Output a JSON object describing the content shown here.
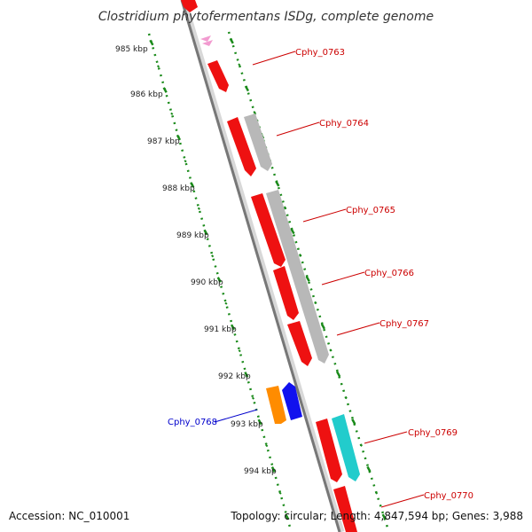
{
  "title": "Clostridium phytofermentans ISDg, complete genome",
  "footer": {
    "accession": "Accession: NC_010001",
    "topology": "Topology: circular; Length: 4,847,594 bp; Genes: 3,988"
  },
  "scale": {
    "unit": "kbp",
    "labels": [
      "985 kbp",
      "986 kbp",
      "987 kbp",
      "988 kbp",
      "989 kbp",
      "990 kbp",
      "991 kbp",
      "992 kbp",
      "993 kbp",
      "994 kbp"
    ]
  },
  "colors": {
    "backbone": "#808080",
    "tick": "#1a8a1a",
    "label_red": "#cc0000",
    "label_blue": "#0000cc"
  },
  "genes": [
    {
      "name": "Cphy_0763",
      "color": "#ee1111",
      "strand": "+"
    },
    {
      "name": "Cphy_0764",
      "color": "#ee1111",
      "strand": "+"
    },
    {
      "name": "Cphy_0765",
      "color": "#ee1111",
      "strand": "+"
    },
    {
      "name": "Cphy_0766",
      "color": "#ee1111",
      "strand": "+"
    },
    {
      "name": "Cphy_0767",
      "color": "#ee1111",
      "strand": "+"
    },
    {
      "name": "Cphy_0768",
      "color": "#1111ee",
      "strand": "-"
    },
    {
      "name": "Cphy_0769",
      "color": "#ee1111",
      "strand": "+"
    },
    {
      "name": "Cphy_0770",
      "color": "#ee1111",
      "strand": "+"
    }
  ]
}
